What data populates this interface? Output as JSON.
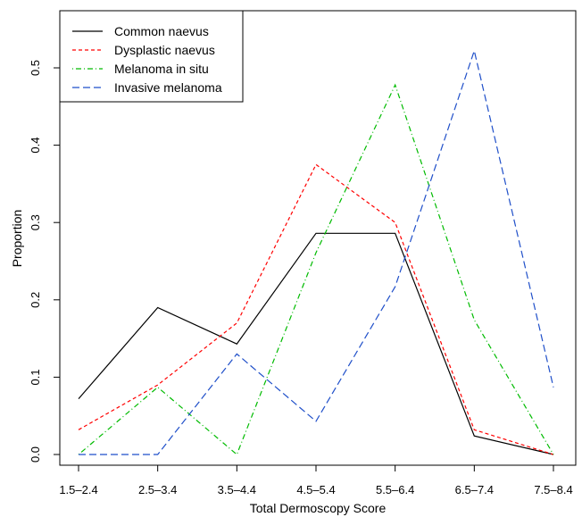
{
  "chart_data": {
    "type": "line",
    "title": "",
    "xlabel": "Total Dermoscopy Score",
    "ylabel": "Proportion",
    "categories": [
      "1.5–2.4",
      "2.5–3.4",
      "3.5–4.4",
      "4.5–5.4",
      "5.5–6.4",
      "6.5–7.4",
      "7.5–8.4"
    ],
    "ylim": [
      -0.01,
      0.55
    ],
    "yticks": [
      "0.0",
      "0.1",
      "0.2",
      "0.3",
      "0.4",
      "0.5"
    ],
    "grid": false,
    "legend_position": "top-left",
    "series": [
      {
        "name": "Common naevus",
        "color": "#000000",
        "dash": "solid",
        "values": [
          0.072,
          0.19,
          0.143,
          0.286,
          0.286,
          0.024,
          0.0
        ]
      },
      {
        "name": "Dysplastic naevus",
        "color": "#ff0000",
        "dash": "dashed",
        "values": [
          0.032,
          0.09,
          0.17,
          0.375,
          0.3,
          0.032,
          0.0
        ]
      },
      {
        "name": "Melanoma in situ",
        "color": "#00bb00",
        "dash": "dotdash",
        "values": [
          0.0,
          0.087,
          0.0,
          0.261,
          0.478,
          0.174,
          0.0
        ]
      },
      {
        "name": "Invasive melanoma",
        "color": "#1f4fc9",
        "dash": "longdash",
        "values": [
          0.0,
          0.0,
          0.13,
          0.043,
          0.217,
          0.522,
          0.087
        ]
      }
    ]
  }
}
